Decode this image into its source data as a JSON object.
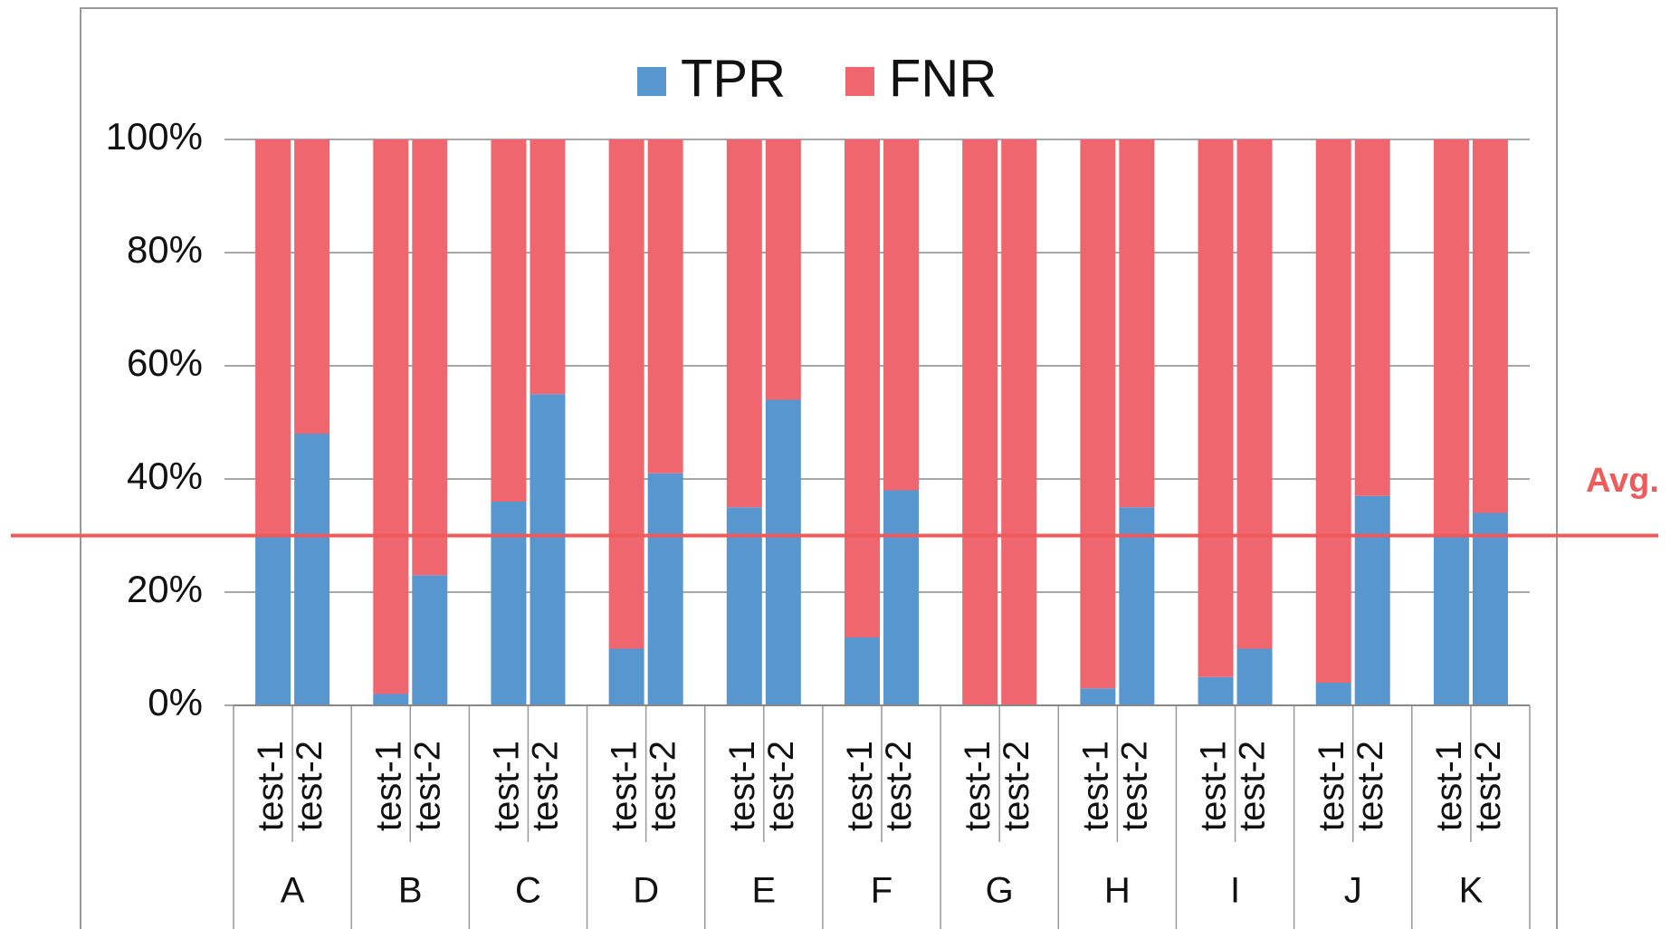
{
  "chart_data": {
    "type": "stacked_bar",
    "categories": [
      "test-1",
      "test-2",
      "test-1",
      "test-2",
      "test-1",
      "test-2",
      "test-1",
      "test-2",
      "test-1",
      "test-2",
      "test-1",
      "test-2",
      "test-1",
      "test-2",
      "test-1",
      "test-2",
      "test-1",
      "test-2",
      "test-1",
      "test-2",
      "test-1",
      "test-2"
    ],
    "groups": [
      "A",
      "B",
      "C",
      "D",
      "E",
      "F",
      "G",
      "H",
      "I",
      "J",
      "K"
    ],
    "series": [
      {
        "name": "TPR",
        "color": "#5896d0",
        "values": [
          30,
          48,
          2,
          23,
          36,
          55,
          10,
          41,
          35,
          54,
          12,
          38,
          0,
          0,
          3,
          35,
          5,
          10,
          4,
          37,
          30,
          34
        ]
      },
      {
        "name": "FNR",
        "color": "#ef666f",
        "values": [
          70,
          52,
          98,
          77,
          64,
          45,
          90,
          59,
          65,
          46,
          88,
          62,
          100,
          100,
          97,
          65,
          95,
          90,
          96,
          63,
          70,
          66
        ]
      }
    ],
    "ylim": [
      0,
      100
    ],
    "yticks": [
      {
        "value": 0,
        "label": "0%"
      },
      {
        "value": 20,
        "label": "20%"
      },
      {
        "value": 40,
        "label": "40%"
      },
      {
        "value": 60,
        "label": "60%"
      },
      {
        "value": 80,
        "label": "80%"
      },
      {
        "value": 100,
        "label": "100%"
      }
    ],
    "grid": true,
    "legend": "top",
    "reference_line": {
      "label": "Avg.",
      "value": 30,
      "color": "#ef5a5a"
    }
  }
}
